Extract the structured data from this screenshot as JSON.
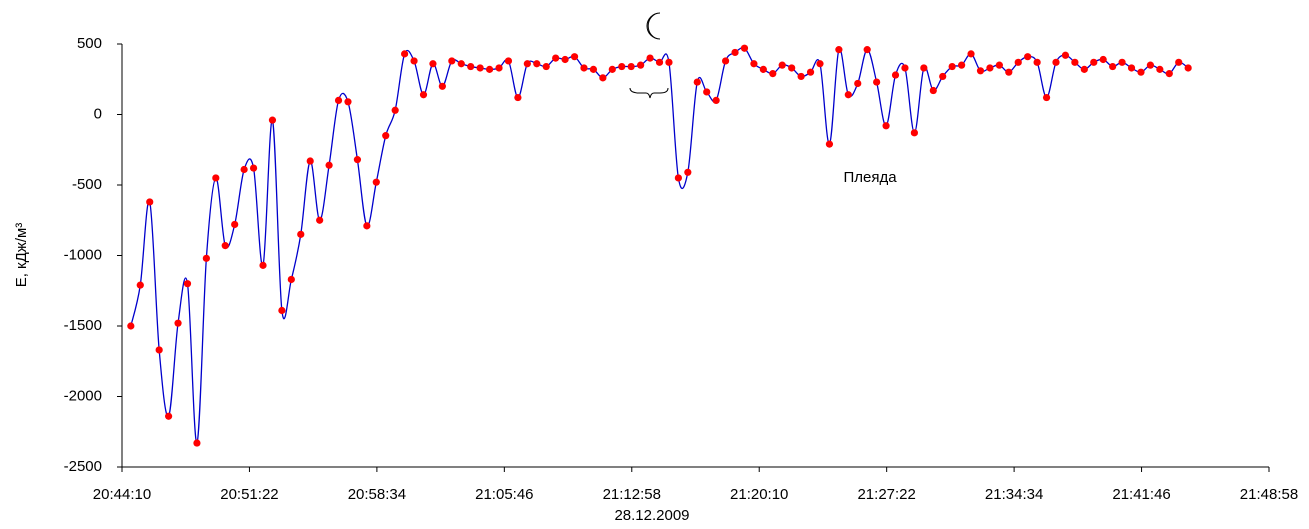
{
  "chart_data": {
    "type": "line",
    "y_label": "E, кДж/м³",
    "x_label": "28.12.2009",
    "annotations": [
      "Плеяда"
    ],
    "xlim": [
      74650,
      78538
    ],
    "xticks": [
      {
        "value": 74650,
        "label": "20:44:10"
      },
      {
        "value": 75082,
        "label": "20:51:22"
      },
      {
        "value": 75514,
        "label": "20:58:34"
      },
      {
        "value": 75946,
        "label": "21:05:46"
      },
      {
        "value": 76378,
        "label": "21:12:58"
      },
      {
        "value": 76810,
        "label": "21:20:10"
      },
      {
        "value": 77242,
        "label": "21:27:22"
      },
      {
        "value": 77674,
        "label": "21:34:34"
      },
      {
        "value": 78106,
        "label": "21:41:46"
      },
      {
        "value": 78538,
        "label": "21:48:58"
      }
    ],
    "ylim": [
      -2500,
      500
    ],
    "yticks": [
      500,
      0,
      -500,
      -1000,
      -1500,
      -2000,
      -2500
    ],
    "line_color": "#0000cc",
    "marker_color": "#ff0000",
    "x": [
      74680,
      74712,
      74744,
      74776,
      74808,
      74840,
      74872,
      74904,
      74936,
      74968,
      75000,
      75032,
      75064,
      75096,
      75128,
      75160,
      75192,
      75224,
      75256,
      75288,
      75320,
      75352,
      75384,
      75416,
      75448,
      75480,
      75512,
      75544,
      75576,
      75608,
      75640,
      75672,
      75704,
      75736,
      75768,
      75800,
      75832,
      75864,
      75896,
      75928,
      75960,
      75992,
      76024,
      76056,
      76088,
      76120,
      76152,
      76184,
      76216,
      76248,
      76280,
      76312,
      76344,
      76376,
      76408,
      76440,
      76472,
      76504,
      76536,
      76568,
      76600,
      76632,
      76664,
      76696,
      76728,
      76760,
      76792,
      76824,
      76856,
      76888,
      76920,
      76952,
      76984,
      77016,
      77048,
      77080,
      77112,
      77144,
      77176,
      77208,
      77240,
      77272,
      77304,
      77336,
      77368,
      77400,
      77432,
      77464,
      77496,
      77528,
      77560,
      77592,
      77624,
      77656,
      77688,
      77720,
      77752,
      77784,
      77816,
      77848,
      77880,
      77912,
      77944,
      77976,
      78008,
      78040,
      78072,
      78104,
      78136,
      78168,
      78200,
      78232,
      78264
    ],
    "values": [
      -1500,
      -1210,
      -620,
      -1670,
      -2140,
      -1480,
      -1200,
      -2330,
      -1020,
      -450,
      -930,
      -780,
      -390,
      -380,
      -1070,
      -40,
      -1390,
      -1170,
      -850,
      -330,
      -750,
      -360,
      100,
      90,
      -320,
      -790,
      -480,
      -150,
      30,
      430,
      380,
      140,
      360,
      200,
      380,
      360,
      340,
      330,
      320,
      330,
      380,
      120,
      360,
      360,
      340,
      400,
      390,
      410,
      330,
      320,
      260,
      320,
      340,
      340,
      350,
      400,
      370,
      370,
      -450,
      -410,
      230,
      160,
      100,
      380,
      440,
      470,
      360,
      320,
      290,
      350,
      330,
      270,
      300,
      360,
      -210,
      460,
      140,
      220,
      460,
      230,
      -80,
      280,
      330,
      -130,
      330,
      170,
      270,
      340,
      350,
      430,
      310,
      330,
      350,
      300,
      370,
      410,
      370,
      120,
      370,
      420,
      370,
      320,
      370,
      390,
      340,
      370,
      330,
      300,
      350,
      320,
      290,
      370,
      330
    ]
  }
}
